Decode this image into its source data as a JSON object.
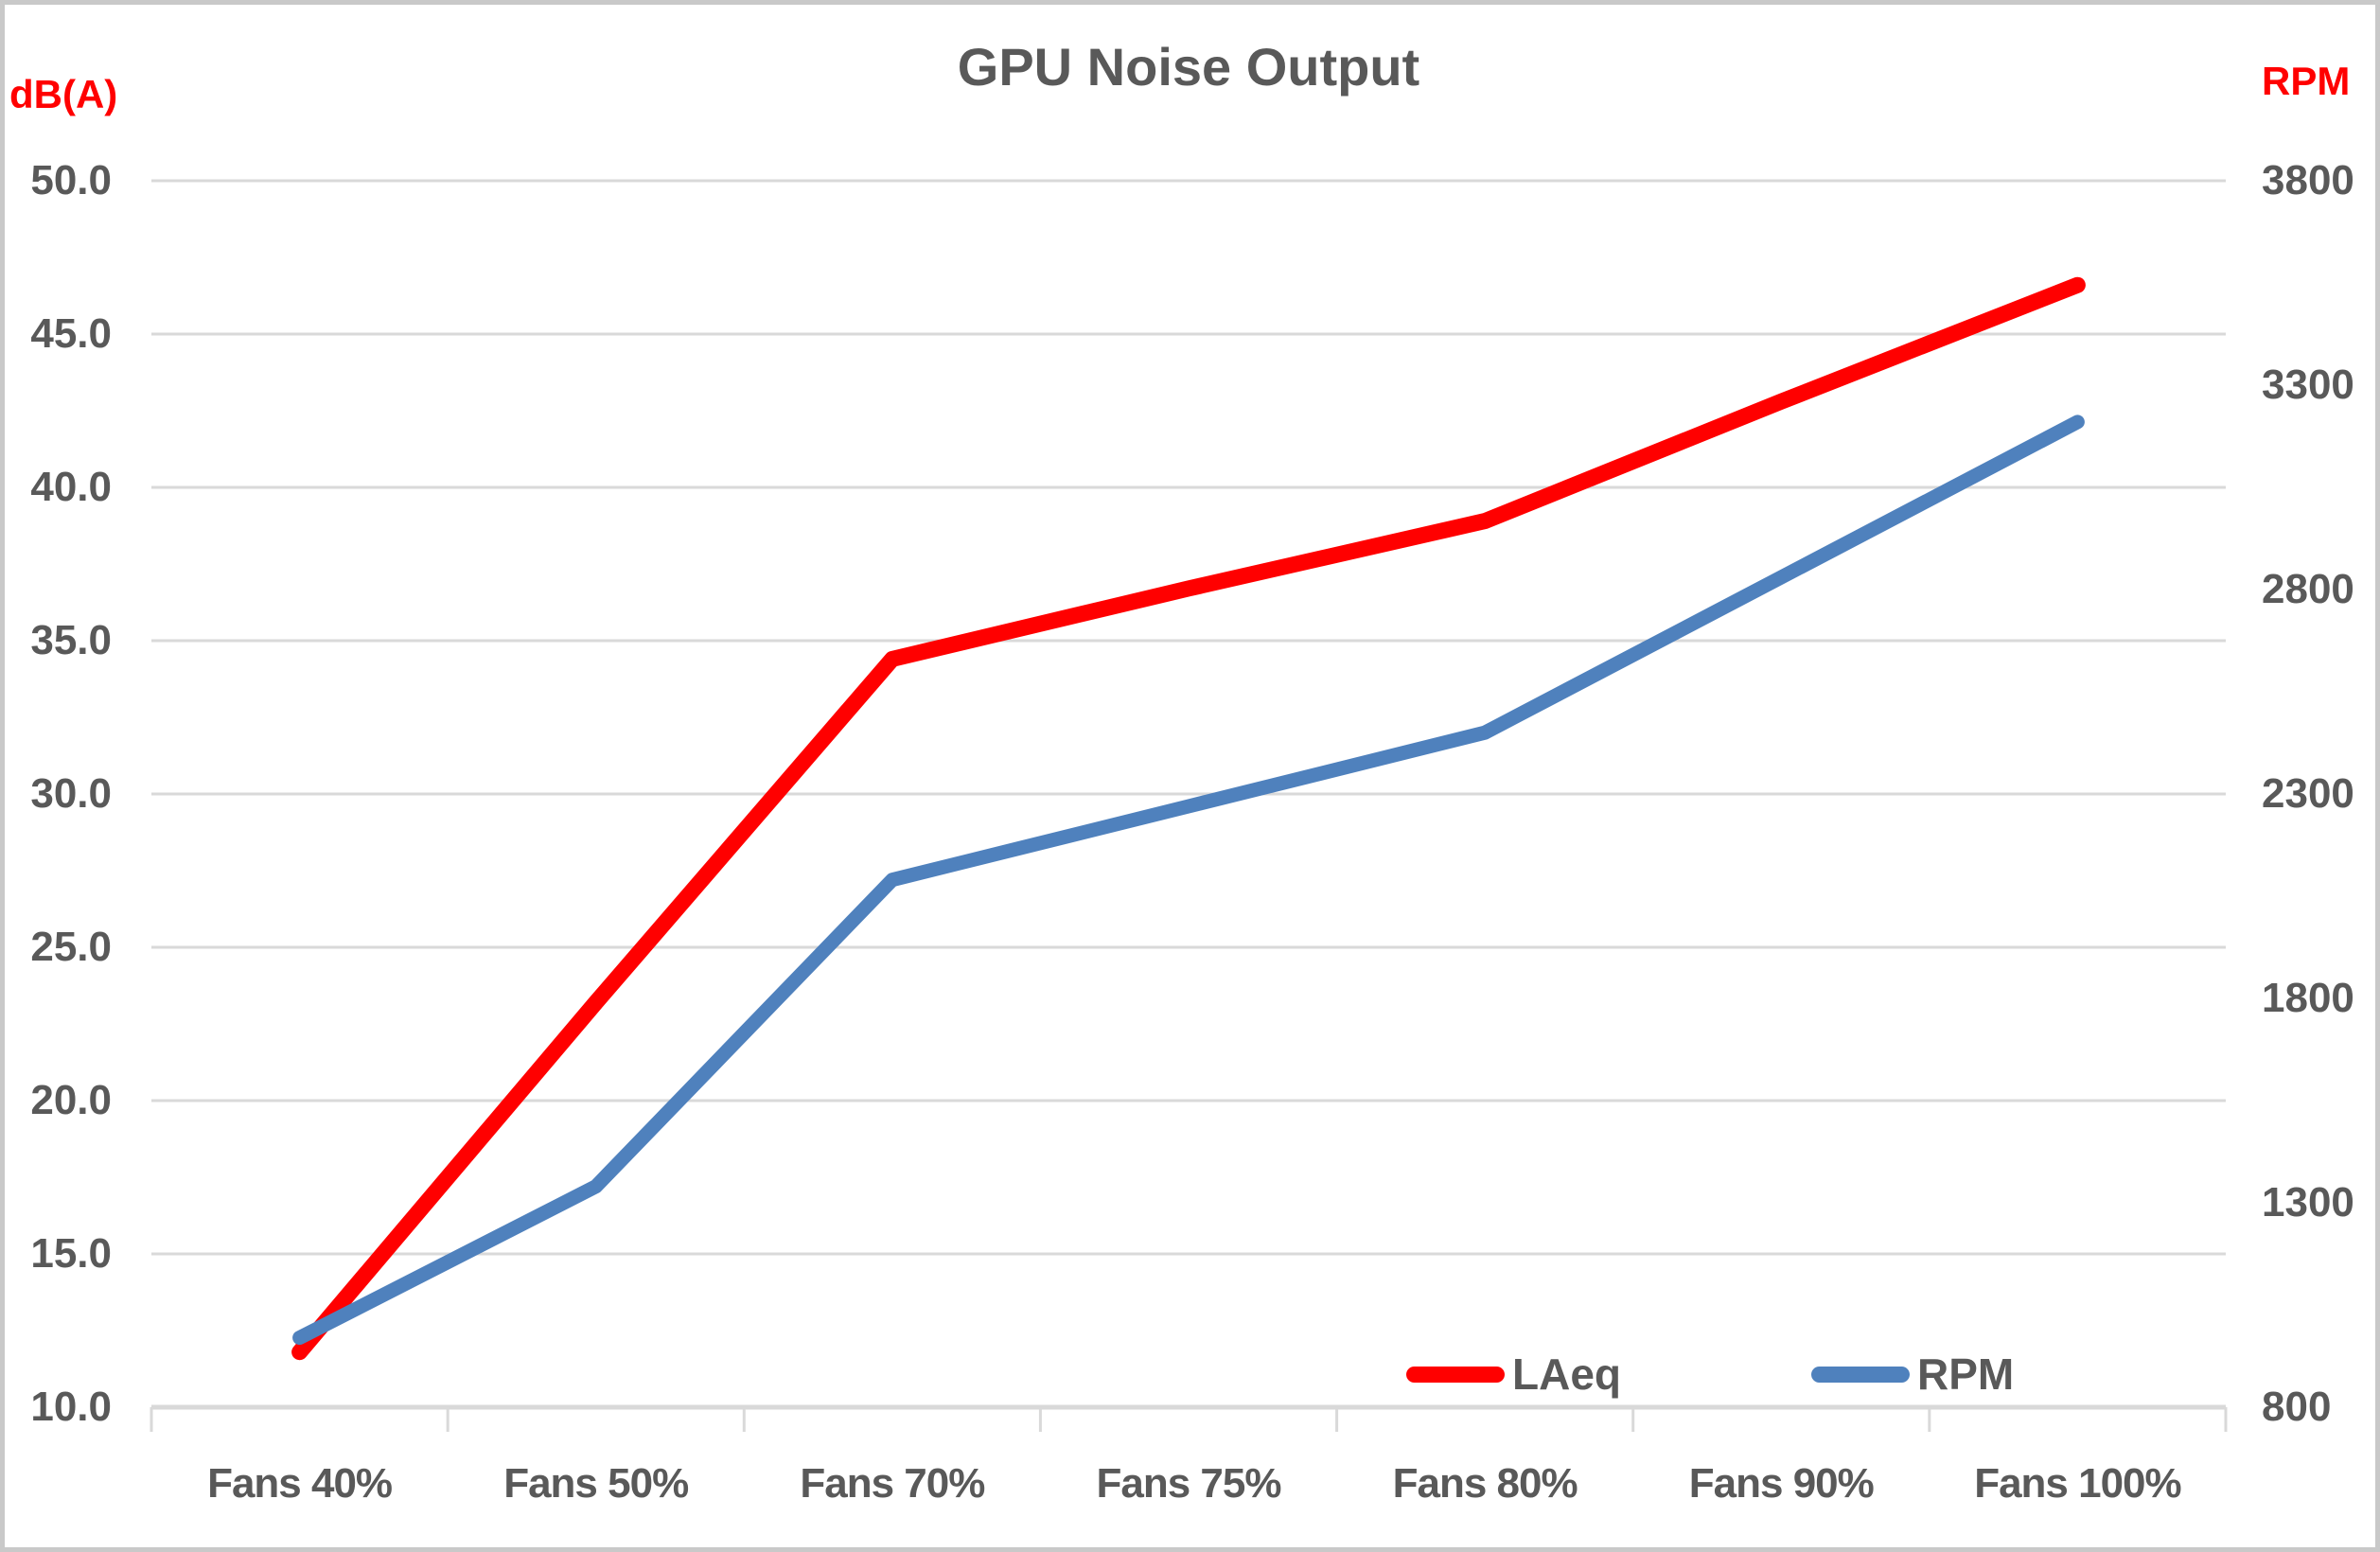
{
  "page": {
    "background": "#ffffff",
    "frame_color": "#c9c9c9"
  },
  "chart_data": {
    "type": "line",
    "title": "GPU Noise Output",
    "title_color": "#595959",
    "grid": true,
    "gridline_color": "#d9d9d9",
    "tick_text_color": "#595959",
    "categories": [
      "Fans 40%",
      "Fans 50%",
      "Fans 70%",
      "Fans 75%",
      "Fans 80%",
      "Fans 90%",
      "Fans 100%"
    ],
    "series": [
      {
        "name": "LAeq",
        "axis": "left",
        "color": "#ff0000",
        "stroke_width": 17,
        "values": [
          11.8,
          23.2,
          34.4,
          36.7,
          38.9,
          42.8,
          46.6
        ]
      },
      {
        "name": "RPM",
        "axis": "right",
        "color": "#4f81bd",
        "stroke_width": 15,
        "values": [
          970,
          1340,
          2090,
          2270,
          2450,
          2830,
          3210
        ]
      }
    ],
    "left_axis": {
      "label": "dB(A)",
      "label_color": "#ff0000",
      "min": 10,
      "max": 50,
      "step": 5,
      "tick_labels": [
        "50.0",
        "45.0",
        "40.0",
        "35.0",
        "30.0",
        "25.0",
        "20.0",
        "15.0",
        "10.0"
      ]
    },
    "right_axis": {
      "label": "RPM",
      "label_color": "#ff0000",
      "min": 800,
      "max": 3800,
      "step": 500,
      "tick_labels": [
        "3800",
        "3300",
        "2800",
        "2300",
        "1800",
        "1300",
        "800"
      ]
    },
    "legend": {
      "position": "bottom-right",
      "entries": [
        "LAeq",
        "RPM"
      ]
    }
  }
}
